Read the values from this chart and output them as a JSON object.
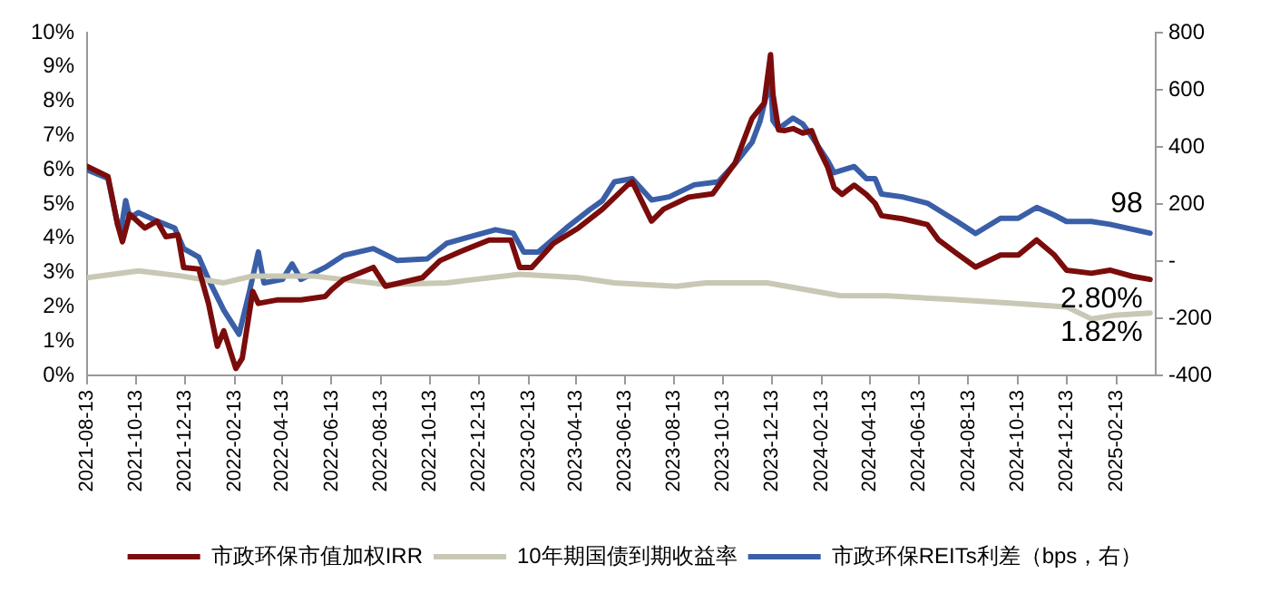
{
  "chart_data": {
    "type": "line",
    "legend": "bottom",
    "grid": false,
    "marker": "none",
    "line_style": "solid",
    "xlim": [
      "2021-08-13",
      "2025-04-03"
    ],
    "xticks": [
      "2021-08-13",
      "2021-10-13",
      "2021-12-13",
      "2022-02-13",
      "2022-04-13",
      "2022-06-13",
      "2022-08-13",
      "2022-10-13",
      "2022-12-13",
      "2023-02-13",
      "2023-04-13",
      "2023-06-13",
      "2023-08-13",
      "2023-10-13",
      "2023-12-13",
      "2024-02-13",
      "2024-04-13",
      "2024-06-13",
      "2024-08-13",
      "2024-10-13",
      "2024-12-13",
      "2025-02-13"
    ],
    "ylim": [
      0,
      10
    ],
    "yticks": [
      {
        "value": 0,
        "label": "0%"
      },
      {
        "value": 1,
        "label": "1%"
      },
      {
        "value": 2,
        "label": "2%"
      },
      {
        "value": 3,
        "label": "3%"
      },
      {
        "value": 4,
        "label": "4%"
      },
      {
        "value": 5,
        "label": "5%"
      },
      {
        "value": 6,
        "label": "6%"
      },
      {
        "value": 7,
        "label": "7%"
      },
      {
        "value": 8,
        "label": "8%"
      },
      {
        "value": 9,
        "label": "9%"
      },
      {
        "value": 10,
        "label": "10%"
      }
    ],
    "y2lim": [
      -400,
      800
    ],
    "y2ticks": [
      -400,
      -200,
      {
        "value": 0,
        "label": "-"
      },
      200,
      400,
      600,
      800
    ],
    "series": [
      {
        "name": "市政环保市值加权IRR",
        "color": "#7b0c0c",
        "axis": "y",
        "x": [
          "2021-08-13",
          "2021-09-08",
          "2021-09-20",
          "2021-09-26",
          "2021-10-05",
          "2021-10-24",
          "2021-11-08",
          "2021-11-19",
          "2021-12-04",
          "2021-12-11",
          "2021-12-30",
          "2022-01-11",
          "2022-01-22",
          "2022-01-30",
          "2022-02-14",
          "2022-02-22",
          "2022-03-07",
          "2022-03-14",
          "2022-04-06",
          "2022-05-06",
          "2022-06-05",
          "2022-06-13",
          "2022-06-28",
          "2022-08-04",
          "2022-08-19",
          "2022-10-04",
          "2022-10-26",
          "2022-11-19",
          "2022-12-26",
          "2023-01-22",
          "2023-02-02",
          "2023-02-17",
          "2023-03-16",
          "2023-04-16",
          "2023-05-16",
          "2023-06-16",
          "2023-06-22",
          "2023-07-16",
          "2023-07-31",
          "2023-08-31",
          "2023-09-30",
          "2023-10-28",
          "2023-11-18",
          "2023-12-03",
          "2023-12-11",
          "2023-12-14",
          "2023-12-21",
          "2023-12-28",
          "2024-01-08",
          "2024-01-20",
          "2024-01-31",
          "2024-02-09",
          "2024-02-20",
          "2024-02-28",
          "2024-03-09",
          "2024-03-24",
          "2024-04-08",
          "2024-04-19",
          "2024-04-27",
          "2024-05-23",
          "2024-06-23",
          "2024-07-07",
          "2024-07-30",
          "2024-08-22",
          "2024-09-22",
          "2024-10-14",
          "2024-11-06",
          "2024-11-28",
          "2024-12-13",
          "2025-01-13",
          "2025-02-05",
          "2025-03-05",
          "2025-03-27"
        ],
        "values": [
          6.1,
          5.8,
          4.4,
          3.9,
          4.7,
          4.3,
          4.5,
          4.05,
          4.1,
          3.15,
          3.1,
          2.1,
          0.85,
          1.3,
          0.2,
          0.5,
          2.45,
          2.1,
          2.2,
          2.2,
          2.3,
          2.5,
          2.8,
          3.15,
          2.6,
          2.85,
          3.35,
          3.6,
          3.95,
          3.95,
          3.15,
          3.15,
          3.85,
          4.3,
          4.85,
          5.55,
          5.65,
          4.5,
          4.85,
          5.2,
          5.3,
          6.2,
          7.5,
          7.94,
          9.36,
          8.2,
          7.16,
          7.14,
          7.2,
          7.07,
          7.14,
          6.61,
          6.08,
          5.48,
          5.28,
          5.55,
          5.28,
          5.02,
          4.66,
          4.57,
          4.4,
          3.95,
          3.55,
          3.16,
          3.51,
          3.51,
          3.95,
          3.51,
          3.07,
          2.98,
          3.07,
          2.89,
          2.8
        ],
        "value_labels": [
          null,
          null,
          null,
          null,
          null,
          null,
          null,
          null,
          null,
          null,
          null,
          null,
          null,
          null,
          null,
          null,
          null,
          null,
          null,
          null,
          null,
          null,
          null,
          null,
          null,
          null,
          null,
          null,
          null,
          null,
          null,
          null,
          null,
          null,
          null,
          null,
          null,
          null,
          null,
          null,
          null,
          null,
          null,
          null,
          null,
          null,
          null,
          null,
          null,
          null,
          null,
          null,
          null,
          null,
          null,
          null,
          null,
          null,
          null,
          null,
          null,
          null,
          null,
          null,
          null,
          null,
          null,
          null,
          null,
          null,
          null,
          null,
          "2.80%"
        ]
      },
      {
        "name": "10年期国债到期收益率",
        "color": "#c8c8b4",
        "axis": "y",
        "x": [
          "2021-08-13",
          "2021-10-16",
          "2021-12-08",
          "2022-01-30",
          "2022-03-07",
          "2022-05-21",
          "2022-08-19",
          "2022-11-03",
          "2023-02-02",
          "2023-04-16",
          "2023-05-31",
          "2023-08-16",
          "2023-09-22",
          "2023-12-07",
          "2024-03-06",
          "2024-05-04",
          "2024-07-19",
          "2024-10-04",
          "2024-12-13",
          "2025-01-13",
          "2025-02-10",
          "2025-03-27"
        ],
        "values": [
          2.85,
          3.05,
          2.9,
          2.7,
          2.9,
          2.9,
          2.65,
          2.7,
          2.95,
          2.85,
          2.7,
          2.6,
          2.7,
          2.7,
          2.33,
          2.32,
          2.22,
          2.11,
          2.0,
          1.65,
          1.75,
          1.82
        ],
        "value_labels": [
          null,
          null,
          null,
          null,
          null,
          null,
          null,
          null,
          null,
          null,
          null,
          null,
          null,
          null,
          null,
          null,
          null,
          null,
          null,
          null,
          null,
          "1.82%"
        ]
      },
      {
        "name": "市政环保REITs利差（bps，右）",
        "color": "#3a5fa8",
        "axis": "y2",
        "x": [
          "2021-08-13",
          "2021-09-08",
          "2021-09-20",
          "2021-09-24",
          "2021-09-30",
          "2021-10-05",
          "2021-10-16",
          "2021-11-08",
          "2021-11-30",
          "2021-12-11",
          "2021-12-30",
          "2022-01-11",
          "2022-01-30",
          "2022-02-18",
          "2022-03-03",
          "2022-03-14",
          "2022-03-21",
          "2022-04-13",
          "2022-04-25",
          "2022-05-06",
          "2022-06-05",
          "2022-06-28",
          "2022-08-04",
          "2022-09-03",
          "2022-10-10",
          "2022-11-03",
          "2022-12-03",
          "2023-01-03",
          "2023-01-25",
          "2023-02-07",
          "2023-02-25",
          "2023-04-01",
          "2023-05-01",
          "2023-05-16",
          "2023-05-31",
          "2023-06-22",
          "2023-07-16",
          "2023-08-07",
          "2023-09-07",
          "2023-10-07",
          "2023-10-28",
          "2023-11-18",
          "2023-11-28",
          "2023-12-11",
          "2023-12-14",
          "2023-12-21",
          "2024-01-08",
          "2024-01-20",
          "2024-01-31",
          "2024-02-20",
          "2024-02-28",
          "2024-03-24",
          "2024-04-08",
          "2024-04-19",
          "2024-04-27",
          "2024-05-23",
          "2024-06-23",
          "2024-07-30",
          "2024-08-22",
          "2024-09-22",
          "2024-10-14",
          "2024-11-06",
          "2024-11-28",
          "2024-12-13",
          "2025-01-13",
          "2025-02-05",
          "2025-03-27"
        ],
        "values": [
          320,
          290,
          128,
          105,
          212,
          152,
          170,
          140,
          116,
          44,
          14,
          -64,
          -172,
          -256,
          -106,
          32,
          -76,
          -64,
          -10,
          -64,
          -22,
          20,
          44,
          2,
          8,
          62,
          86,
          110,
          98,
          32,
          32,
          116,
          182,
          212,
          278,
          289,
          214,
          225,
          267,
          278,
          342,
          416,
          491,
          640,
          492,
          464,
          501,
          480,
          437,
          352,
          310,
          331,
          289,
          289,
          235,
          225,
          203,
          139,
          97,
          150,
          150,
          188,
          161,
          139,
          139,
          129,
          98
        ],
        "value_labels": [
          null,
          null,
          null,
          null,
          null,
          null,
          null,
          null,
          null,
          null,
          null,
          null,
          null,
          null,
          null,
          null,
          null,
          null,
          null,
          null,
          null,
          null,
          null,
          null,
          null,
          null,
          null,
          null,
          null,
          null,
          null,
          null,
          null,
          null,
          null,
          null,
          null,
          null,
          null,
          null,
          null,
          null,
          null,
          null,
          null,
          null,
          null,
          null,
          null,
          null,
          null,
          null,
          null,
          null,
          null,
          null,
          null,
          null,
          null,
          null,
          null,
          null,
          null,
          null,
          null,
          null,
          "98"
        ]
      }
    ]
  }
}
